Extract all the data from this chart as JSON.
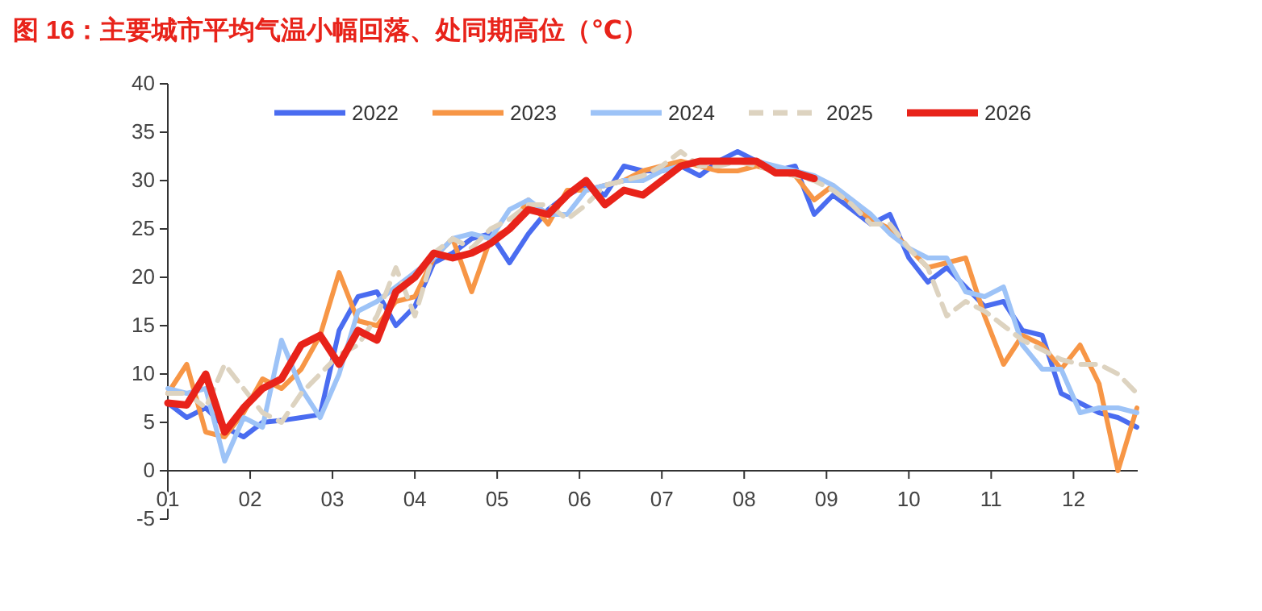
{
  "chart_data": {
    "type": "line",
    "title": "图 16：主要城市平均气温小幅回落、处同期高位（℃）",
    "x": [
      1,
      1.23,
      1.46,
      1.69,
      1.92,
      2.15,
      2.38,
      2.62,
      2.85,
      3.08,
      3.31,
      3.54,
      3.77,
      4,
      4.23,
      4.46,
      4.69,
      4.92,
      5.15,
      5.38,
      5.62,
      5.85,
      6.08,
      6.31,
      6.54,
      6.77,
      7,
      7.23,
      7.46,
      7.69,
      7.92,
      8.15,
      8.38,
      8.62,
      8.85,
      9.08,
      9.31,
      9.54,
      9.77,
      10,
      10.23,
      10.46,
      10.69,
      10.92,
      11.15,
      11.38,
      11.62,
      11.85,
      12.08,
      12.31,
      12.54,
      12.77
    ],
    "series": [
      {
        "name": "2022",
        "color": "#4a6cf0",
        "values": [
          7,
          5.5,
          6.5,
          4.5,
          3.5,
          5,
          5.2,
          5.5,
          5.8,
          14.5,
          18,
          18.5,
          15,
          17,
          21.5,
          22.5,
          24,
          24.5,
          21.5,
          24.5,
          27,
          28.5,
          29.5,
          28.5,
          31.5,
          31,
          31,
          31.5,
          30.5,
          32,
          33,
          32,
          31,
          31.5,
          26.5,
          28.5,
          27,
          25.5,
          26.5,
          22,
          19.5,
          21,
          19,
          17,
          17.5,
          14.5,
          14,
          8,
          7,
          6,
          5.5,
          4.5
        ]
      },
      {
        "name": "2023",
        "color": "#f79646",
        "values": [
          8,
          11,
          4,
          3.5,
          6,
          9.5,
          8.5,
          10.5,
          14,
          20.5,
          15.5,
          15,
          17.5,
          18,
          22,
          24,
          18.5,
          24,
          25,
          28,
          25.5,
          29,
          29,
          29.5,
          30,
          31,
          31.5,
          32,
          31.5,
          31,
          31,
          31.5,
          31,
          30.5,
          28,
          29.5,
          27.5,
          26,
          25,
          23,
          21,
          21.5,
          22,
          16,
          11,
          14,
          13,
          10.5,
          13,
          9,
          0,
          6.5
        ]
      },
      {
        "name": "2024",
        "color": "#9dc3f7",
        "values": [
          8.5,
          8,
          8.5,
          1,
          5.5,
          4.5,
          13.5,
          8.5,
          5.5,
          10,
          16.5,
          17.5,
          19,
          20.5,
          22,
          24,
          24.5,
          24,
          27,
          28,
          26.5,
          26.5,
          29,
          29.5,
          30,
          30,
          31,
          31.5,
          32,
          32,
          32,
          32,
          31.5,
          31,
          30.5,
          29.5,
          28,
          26.5,
          24.5,
          23,
          22,
          22,
          18.5,
          18,
          19,
          13,
          10.5,
          10.5,
          6,
          6.5,
          6.5,
          6
        ]
      },
      {
        "name": "2025",
        "color": "#ddd3c0",
        "line_style": "dashed",
        "values": [
          8,
          8,
          6.5,
          11,
          8.5,
          6,
          5,
          8,
          10,
          12,
          13,
          16,
          21,
          16,
          22.5,
          24,
          23,
          25,
          26,
          27.5,
          27.5,
          26,
          27.5,
          29.5,
          30,
          30.5,
          31.5,
          33,
          31.5,
          31.5,
          32,
          31.5,
          31,
          30.5,
          30,
          29,
          27.5,
          25.5,
          25.5,
          23,
          21,
          16,
          17.5,
          16.5,
          15,
          13.5,
          12.5,
          11.5,
          11,
          11,
          10,
          8
        ]
      },
      {
        "name": "2026",
        "color": "#e8231a",
        "values": [
          7,
          6.8,
          10,
          4,
          6.5,
          8.5,
          9.5,
          13,
          14,
          11,
          14.5,
          13.5,
          18.5,
          20,
          22.5,
          22,
          22.5,
          23.5,
          25,
          27,
          26.5,
          28.5,
          30,
          27.5,
          29,
          28.5,
          30,
          31.5,
          32,
          32,
          32,
          32,
          30.8,
          30.8,
          30.2,
          null,
          null,
          null,
          null,
          null,
          null,
          null,
          null,
          null,
          null,
          null,
          null,
          null,
          null,
          null,
          null,
          null
        ]
      }
    ],
    "xlim": [
      1,
      12.78
    ],
    "xticks": [
      {
        "value": 1,
        "label": "01"
      },
      {
        "value": 2,
        "label": "02"
      },
      {
        "value": 3,
        "label": "03"
      },
      {
        "value": 4,
        "label": "04"
      },
      {
        "value": 5,
        "label": "05"
      },
      {
        "value": 6,
        "label": "06"
      },
      {
        "value": 7,
        "label": "07"
      },
      {
        "value": 8,
        "label": "08"
      },
      {
        "value": 9,
        "label": "09"
      },
      {
        "value": 10,
        "label": "10"
      },
      {
        "value": 11,
        "label": "11"
      },
      {
        "value": 12,
        "label": "12"
      }
    ],
    "ylim": [
      -5,
      40
    ],
    "yticks": [
      -5,
      0,
      5,
      10,
      15,
      20,
      25,
      30,
      35,
      40
    ],
    "legend": "top",
    "grid": false,
    "marker": "none"
  }
}
